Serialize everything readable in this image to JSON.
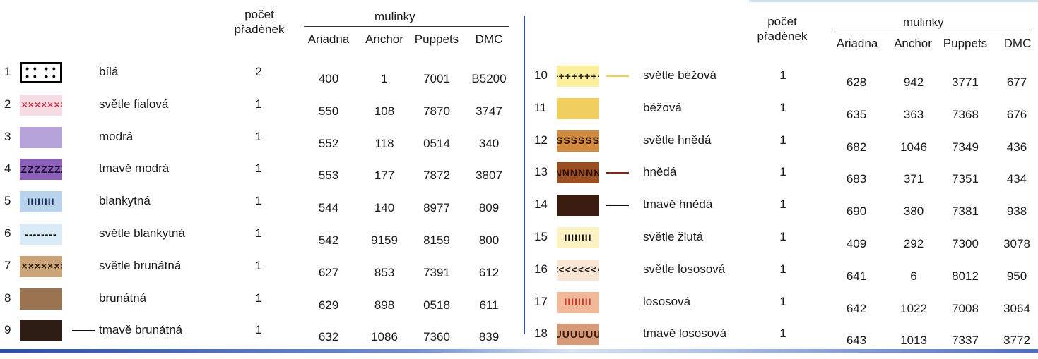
{
  "headers": {
    "count_line1": "počet",
    "count_line2": "přadének",
    "group": "mulinky",
    "cols": [
      "Ariadna",
      "Anchor",
      "Puppets",
      "DMC"
    ]
  },
  "left_rows": [
    {
      "num": "1",
      "name": "bílá",
      "count": "2",
      "ariadna": "400",
      "anchor": "1",
      "puppets": "7001",
      "dmc": "B5200",
      "symbol": "• • • •",
      "bg": "#ffffff",
      "fg": "#000000",
      "mark": false,
      "mark_color": "",
      "boxed": true
    },
    {
      "num": "2",
      "name": "světle fialová",
      "count": "1",
      "ariadna": "550",
      "anchor": "108",
      "puppets": "7870",
      "dmc": "3747",
      "symbol": "××××",
      "bg": "#f7dde3",
      "fg": "#d23a4a",
      "mark": false,
      "mark_color": "",
      "boxed": false
    },
    {
      "num": "3",
      "name": "modrá",
      "count": "1",
      "ariadna": "552",
      "anchor": "118",
      "puppets": "0514",
      "dmc": "340",
      "symbol": "",
      "bg": "#b6a3d9",
      "fg": "#000000",
      "mark": false,
      "mark_color": "",
      "boxed": false
    },
    {
      "num": "4",
      "name": "tmavě modrá",
      "count": "1",
      "ariadna": "553",
      "anchor": "177",
      "puppets": "7872",
      "dmc": "3807",
      "symbol": "ZZZZ",
      "bg": "#8c5fb8",
      "fg": "#1b0f33",
      "mark": false,
      "mark_color": "",
      "boxed": false
    },
    {
      "num": "5",
      "name": "blankytná",
      "count": "1",
      "ariadna": "544",
      "anchor": "140",
      "puppets": "8977",
      "dmc": "809",
      "symbol": "IIII",
      "bg": "#b9d3ec",
      "fg": "#1c2a55",
      "mark": false,
      "mark_color": "",
      "boxed": false
    },
    {
      "num": "6",
      "name": "světle blankytná",
      "count": "1",
      "ariadna": "542",
      "anchor": "9159",
      "puppets": "8159",
      "dmc": "800",
      "symbol": "----",
      "bg": "#d9ebf6",
      "fg": "#111111",
      "mark": false,
      "mark_color": "",
      "boxed": false
    },
    {
      "num": "7",
      "name": "světle brunátná",
      "count": "1",
      "ariadna": "627",
      "anchor": "853",
      "puppets": "7391",
      "dmc": "612",
      "symbol": "××××",
      "bg": "#caa378",
      "fg": "#2a1a0a",
      "mark": false,
      "mark_color": "",
      "boxed": false
    },
    {
      "num": "8",
      "name": "brunátná",
      "count": "1",
      "ariadna": "629",
      "anchor": "898",
      "puppets": "0518",
      "dmc": "611",
      "symbol": "",
      "bg": "#9a7450",
      "fg": "#000000",
      "mark": false,
      "mark_color": "",
      "boxed": false
    },
    {
      "num": "9",
      "name": "tmavě brunátná",
      "count": "1",
      "ariadna": "632",
      "anchor": "1086",
      "puppets": "7360",
      "dmc": "839",
      "symbol": "",
      "bg": "#2e1d14",
      "fg": "#000000",
      "mark": true,
      "mark_color": "#111111",
      "boxed": false
    }
  ],
  "right_rows": [
    {
      "num": "10",
      "name": "světle béžová",
      "count": "1",
      "ariadna": "628",
      "anchor": "942",
      "puppets": "3771",
      "dmc": "677",
      "symbol": "++++",
      "bg": "#fbee9a",
      "fg": "#222222",
      "mark": true,
      "mark_color": "#f3d24a",
      "boxed": false
    },
    {
      "num": "11",
      "name": "béžová",
      "count": "1",
      "ariadna": "635",
      "anchor": "363",
      "puppets": "7368",
      "dmc": "676",
      "symbol": "",
      "bg": "#f1cf5f",
      "fg": "#000000",
      "mark": false,
      "mark_color": "",
      "boxed": false
    },
    {
      "num": "12",
      "name": "světle hnědá",
      "count": "1",
      "ariadna": "682",
      "anchor": "1046",
      "puppets": "7349",
      "dmc": "436",
      "symbol": "SSSS",
      "bg": "#d28a3f",
      "fg": "#2a1405",
      "mark": false,
      "mark_color": "",
      "boxed": false
    },
    {
      "num": "13",
      "name": "hnědá",
      "count": "1",
      "ariadna": "683",
      "anchor": "371",
      "puppets": "7351",
      "dmc": "434",
      "symbol": "NNNN",
      "bg": "#9a4e22",
      "fg": "#2a0e05",
      "mark": true,
      "mark_color": "#7a2a12",
      "boxed": false
    },
    {
      "num": "14",
      "name": "tmavě hnědá",
      "count": "1",
      "ariadna": "690",
      "anchor": "380",
      "puppets": "7381",
      "dmc": "938",
      "symbol": "",
      "bg": "#3a1d10",
      "fg": "#000000",
      "mark": true,
      "mark_color": "#111111",
      "boxed": false
    },
    {
      "num": "15",
      "name": "světle žlutá",
      "count": "1",
      "ariadna": "409",
      "anchor": "292",
      "puppets": "7300",
      "dmc": "3078",
      "symbol": "IIII",
      "bg": "#fdf3c2",
      "fg": "#111111",
      "mark": false,
      "mark_color": "",
      "boxed": false
    },
    {
      "num": "16",
      "name": "světle lososová",
      "count": "1",
      "ariadna": "641",
      "anchor": "6",
      "puppets": "8012",
      "dmc": "950",
      "symbol": "<<<<",
      "bg": "#fbe6d5",
      "fg": "#222222",
      "mark": false,
      "mark_color": "",
      "boxed": false
    },
    {
      "num": "17",
      "name": "lososová",
      "count": "1",
      "ariadna": "642",
      "anchor": "1022",
      "puppets": "7008",
      "dmc": "3064",
      "symbol": "IIII",
      "bg": "#f2b89a",
      "fg": "#c03a2a",
      "mark": false,
      "mark_color": "",
      "boxed": false
    },
    {
      "num": "18",
      "name": "tmavě lososová",
      "count": "1",
      "ariadna": "643",
      "anchor": "1013",
      "puppets": "7337",
      "dmc": "3772",
      "symbol": "UUUU",
      "bg": "#d79a78",
      "fg": "#3a1a0e",
      "mark": false,
      "mark_color": "",
      "boxed": false
    }
  ]
}
